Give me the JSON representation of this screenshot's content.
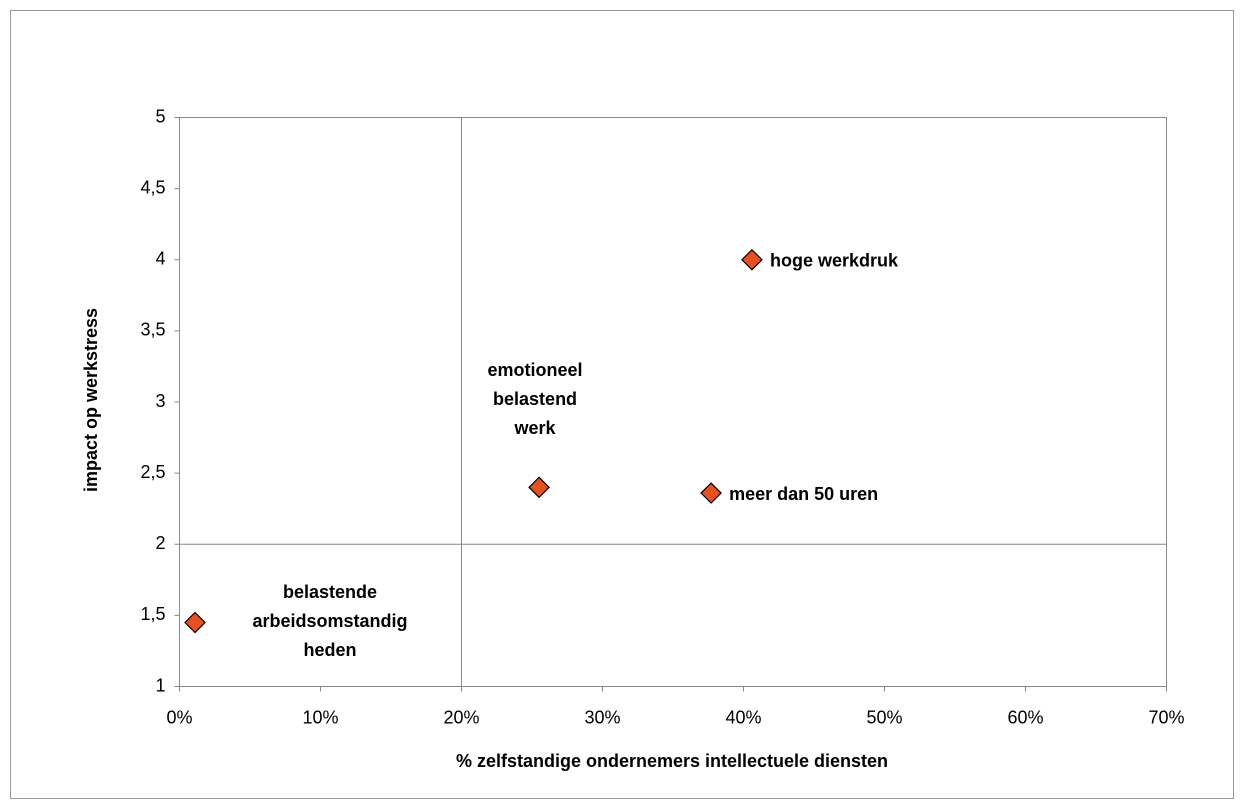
{
  "chart_data": {
    "type": "scatter",
    "x_label": "% zelfstandige ondernemers intellectuele diensten",
    "y_label": "impact op werkstress",
    "x": [
      1.1,
      25.5,
      37.7,
      40.6
    ],
    "values": [
      1.45,
      2.4,
      2.36,
      4.0
    ],
    "labels": [
      [
        "belastende",
        "arbeidsomstandig",
        "heden"
      ],
      [
        "emotioneel",
        "belastend",
        "werk"
      ],
      [
        "meer dan 50 uren"
      ],
      [
        "hoge werkdruk"
      ]
    ],
    "label_position": [
      "right",
      "above",
      "right",
      "right"
    ],
    "color": "#e8501e",
    "xlim": [
      0,
      70
    ],
    "xticks": [
      {
        "value": 0,
        "label": "0%"
      },
      {
        "value": 10,
        "label": "10%"
      },
      {
        "value": 20,
        "label": "20%"
      },
      {
        "value": 30,
        "label": "30%"
      },
      {
        "value": 40,
        "label": "40%"
      },
      {
        "value": 50,
        "label": "50%"
      },
      {
        "value": 60,
        "label": "60%"
      },
      {
        "value": 70,
        "label": "70%"
      }
    ],
    "ylim": [
      1,
      5
    ],
    "yticks": [
      1,
      {
        "value": 1.5,
        "label": "1,5"
      },
      2,
      {
        "value": 2.5,
        "label": "2,5"
      },
      3,
      {
        "value": 3.5,
        "label": "3,5"
      },
      4,
      {
        "value": 4.5,
        "label": "4,5"
      },
      5
    ],
    "quadrant_lines": {
      "x": 20,
      "y": 2
    }
  }
}
